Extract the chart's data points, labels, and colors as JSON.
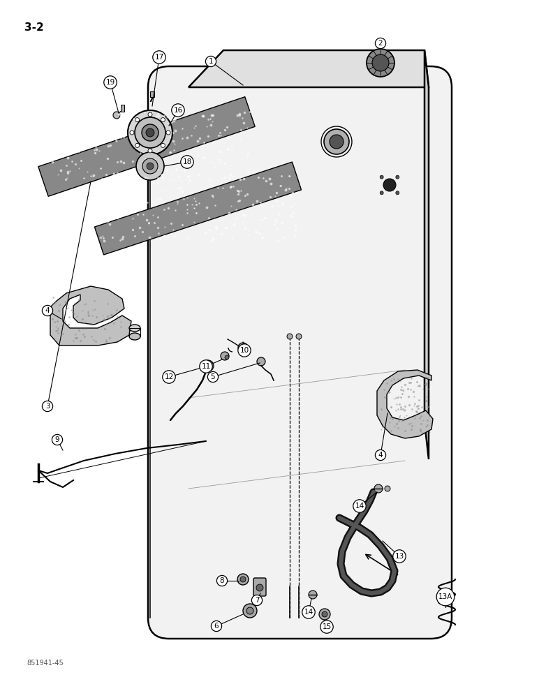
{
  "bg_color": "#ffffff",
  "line_color": "#000000",
  "page_label": "3-2",
  "footer": "851941-45",
  "tank_face_color": "#f2f2f2",
  "tank_top_color": "#e0e0e0",
  "tank_side_color": "#d0d0d0",
  "foam_color": "#888888",
  "bracket_color": "#c0c0c0",
  "fitting_color": "#aaaaaa",
  "hose_color": "#111111"
}
